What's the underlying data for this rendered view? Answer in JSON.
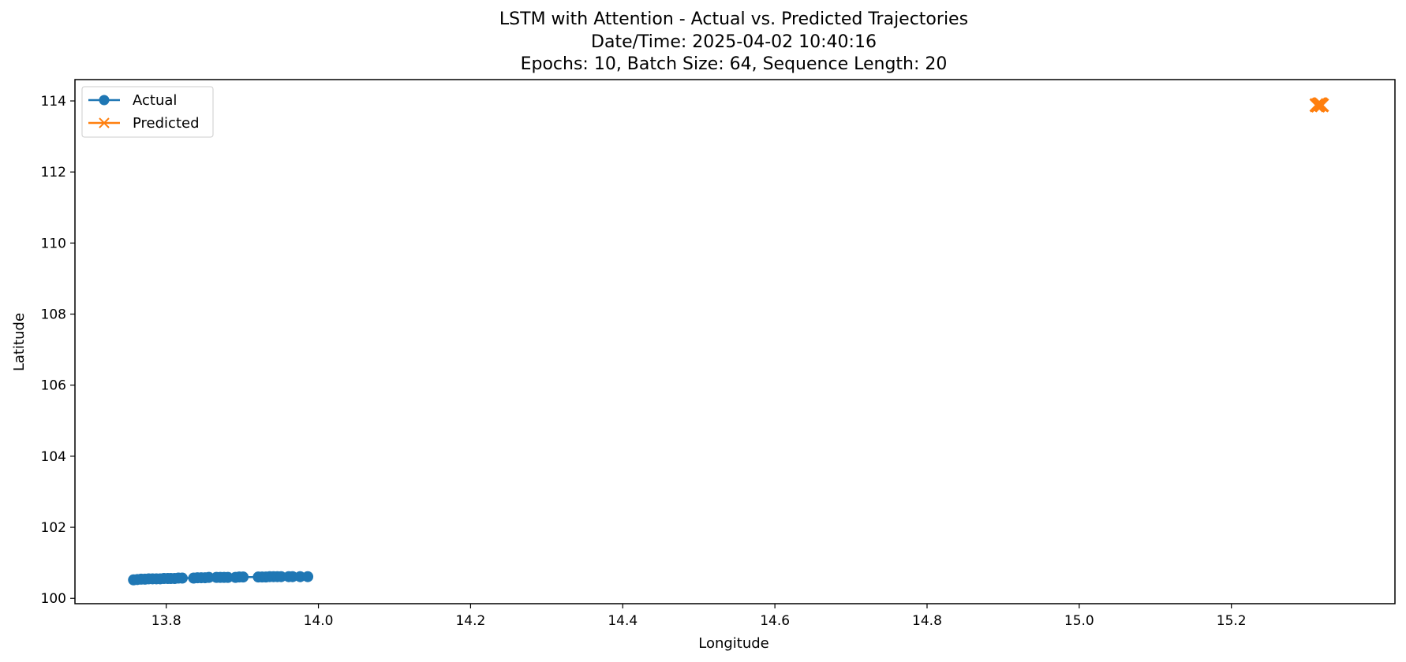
{
  "chart_data": {
    "type": "line",
    "title": "LSTM with Attention - Actual vs. Predicted Trajectories",
    "title_lines": [
      "LSTM with Attention - Actual vs. Predicted Trajectories",
      "Date/Time: 2025-04-02 10:40:16",
      "Epochs: 10, Batch Size: 64, Sequence Length: 20"
    ],
    "xlabel": "Longitude",
    "ylabel": "Latitude",
    "xlim": [
      13.68,
      15.415
    ],
    "ylim": [
      99.85,
      114.6
    ],
    "xticks": [
      13.8,
      14.0,
      14.2,
      14.4,
      14.6,
      14.8,
      15.0,
      15.2
    ],
    "yticks": [
      100,
      102,
      104,
      106,
      108,
      110,
      112,
      114
    ],
    "grid": false,
    "legend_position": "top-left",
    "series": [
      {
        "name": "Actual",
        "color": "#1f77b4",
        "marker": "circle",
        "x": [
          13.757,
          13.762,
          13.767,
          13.772,
          13.777,
          13.782,
          13.787,
          13.792,
          13.797,
          13.802,
          13.806,
          13.811,
          13.816,
          13.821,
          13.836,
          13.841,
          13.846,
          13.851,
          13.856,
          13.866,
          13.871,
          13.876,
          13.881,
          13.891,
          13.896,
          13.901,
          13.921,
          13.926,
          13.931,
          13.936,
          13.941,
          13.946,
          13.951,
          13.961,
          13.966,
          13.976,
          13.986
        ],
        "y": [
          100.52,
          100.53,
          100.54,
          100.54,
          100.55,
          100.55,
          100.55,
          100.55,
          100.56,
          100.56,
          100.56,
          100.56,
          100.57,
          100.57,
          100.57,
          100.58,
          100.58,
          100.58,
          100.59,
          100.59,
          100.59,
          100.59,
          100.59,
          100.59,
          100.6,
          100.6,
          100.6,
          100.6,
          100.6,
          100.61,
          100.61,
          100.61,
          100.61,
          100.61,
          100.61,
          100.61,
          100.61
        ]
      },
      {
        "name": "Predicted",
        "color": "#ff7f0e",
        "marker": "x",
        "x": [
          15.312,
          15.315,
          15.318,
          15.314,
          15.317,
          15.319
        ],
        "y": [
          113.88,
          113.9,
          113.89,
          113.87,
          113.91,
          113.88
        ]
      }
    ]
  }
}
